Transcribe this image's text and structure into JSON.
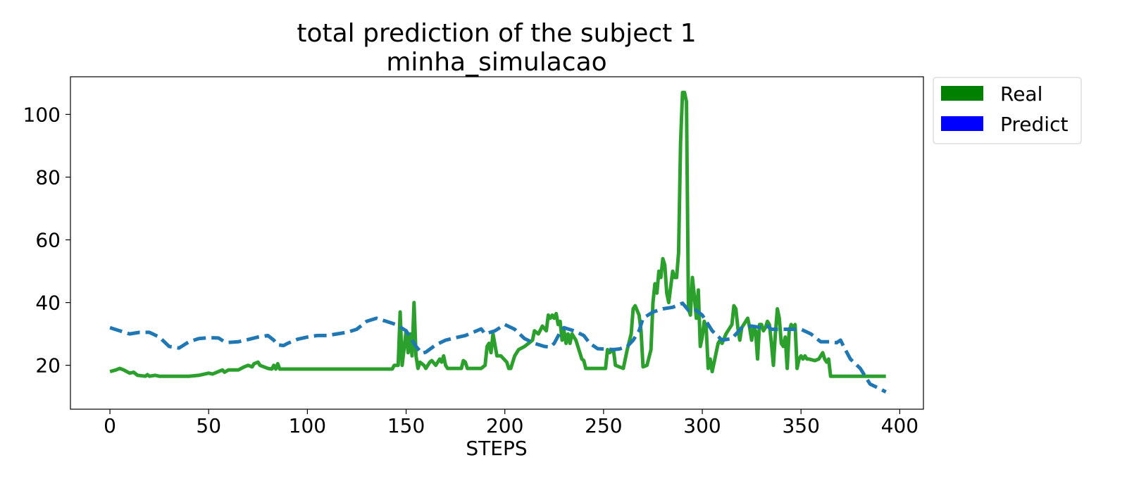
{
  "chart_data": {
    "type": "line",
    "title": "total prediction of the subject 1",
    "subtitle": "minha_simulacao",
    "xlabel": "STEPS",
    "ylabel": "",
    "xlim": [
      -20,
      412
    ],
    "ylim": [
      6,
      112
    ],
    "xticks": [
      0,
      50,
      100,
      150,
      200,
      250,
      300,
      350,
      400
    ],
    "yticks": [
      20,
      40,
      60,
      80,
      100
    ],
    "grid": false,
    "legend": {
      "placement": "outside-top-right",
      "entries": [
        {
          "label": "Real",
          "color": "#008000"
        },
        {
          "label": "Predict",
          "color": "#0000ff"
        }
      ]
    },
    "series": [
      {
        "name": "Real",
        "color": "#2ca02c",
        "style": "solid",
        "points": [
          [
            0,
            18
          ],
          [
            3,
            18.5
          ],
          [
            5,
            19
          ],
          [
            7,
            18.5
          ],
          [
            10,
            17.5
          ],
          [
            12,
            17.8
          ],
          [
            14,
            16.8
          ],
          [
            18,
            16.5
          ],
          [
            19,
            17
          ],
          [
            20,
            16.5
          ],
          [
            23,
            16.8
          ],
          [
            25,
            16.5
          ],
          [
            40,
            16.5
          ],
          [
            45,
            16.8
          ],
          [
            50,
            17.5
          ],
          [
            52,
            17.2
          ],
          [
            55,
            18
          ],
          [
            57,
            18.5
          ],
          [
            58,
            17.8
          ],
          [
            60,
            18.5
          ],
          [
            65,
            18.5
          ],
          [
            68,
            19.5
          ],
          [
            70,
            20
          ],
          [
            72,
            19.5
          ],
          [
            73,
            20.5
          ],
          [
            75,
            21
          ],
          [
            76,
            20
          ],
          [
            78,
            19.5
          ],
          [
            80,
            19
          ],
          [
            82,
            18.8
          ],
          [
            83,
            20
          ],
          [
            84,
            18.8
          ],
          [
            85,
            20.5
          ],
          [
            86,
            18.8
          ],
          [
            100,
            18.8
          ],
          [
            120,
            18.8
          ],
          [
            140,
            18.8
          ],
          [
            143,
            18.8
          ],
          [
            144,
            20
          ],
          [
            146,
            20
          ],
          [
            147,
            37
          ],
          [
            148,
            20
          ],
          [
            150,
            31
          ],
          [
            151,
            24
          ],
          [
            152,
            30
          ],
          [
            153,
            23
          ],
          [
            154,
            40
          ],
          [
            155,
            23
          ],
          [
            156,
            19
          ],
          [
            157,
            21
          ],
          [
            159,
            20
          ],
          [
            160,
            19
          ],
          [
            162,
            21
          ],
          [
            163,
            21.5
          ],
          [
            165,
            20
          ],
          [
            167,
            22
          ],
          [
            168,
            21
          ],
          [
            169,
            23
          ],
          [
            170,
            20
          ],
          [
            171,
            19
          ],
          [
            178,
            19
          ],
          [
            179,
            21.5
          ],
          [
            180,
            21
          ],
          [
            181,
            19
          ],
          [
            188,
            19
          ],
          [
            190,
            20
          ],
          [
            191,
            26
          ],
          [
            192,
            27
          ],
          [
            193,
            24
          ],
          [
            194,
            30
          ],
          [
            196,
            23
          ],
          [
            198,
            23
          ],
          [
            201,
            21
          ],
          [
            202,
            19
          ],
          [
            203,
            19
          ],
          [
            205,
            23
          ],
          [
            207,
            25
          ],
          [
            210,
            26
          ],
          [
            212,
            27
          ],
          [
            214,
            28
          ],
          [
            215,
            31
          ],
          [
            217,
            30
          ],
          [
            219,
            32.5
          ],
          [
            221,
            31
          ],
          [
            222,
            36
          ],
          [
            223,
            35
          ],
          [
            224,
            36
          ],
          [
            225,
            35
          ],
          [
            226,
            36.5
          ],
          [
            227,
            33
          ],
          [
            228,
            34
          ],
          [
            229,
            28
          ],
          [
            230,
            31
          ],
          [
            231,
            27
          ],
          [
            232,
            30
          ],
          [
            233,
            27
          ],
          [
            234,
            30
          ],
          [
            236,
            28
          ],
          [
            238,
            24
          ],
          [
            239,
            22
          ],
          [
            240,
            21.5
          ],
          [
            241,
            19
          ],
          [
            250,
            19
          ],
          [
            251,
            19
          ],
          [
            252,
            25
          ],
          [
            253,
            24
          ],
          [
            255,
            25
          ],
          [
            256,
            20
          ],
          [
            260,
            19
          ],
          [
            262,
            25
          ],
          [
            264,
            30
          ],
          [
            265,
            38
          ],
          [
            266,
            39
          ],
          [
            268,
            36
          ],
          [
            269,
            31
          ],
          [
            270,
            19.5
          ],
          [
            272,
            20
          ],
          [
            274,
            25
          ],
          [
            275,
            40
          ],
          [
            276,
            46
          ],
          [
            277,
            43
          ],
          [
            278,
            50
          ],
          [
            279,
            48
          ],
          [
            280,
            54
          ],
          [
            281,
            52
          ],
          [
            282,
            43
          ],
          [
            283,
            40
          ],
          [
            284,
            45
          ],
          [
            285,
            50
          ],
          [
            286,
            48
          ],
          [
            287,
            48
          ],
          [
            288,
            56
          ],
          [
            289,
            91
          ],
          [
            290,
            107
          ],
          [
            291,
            107
          ],
          [
            292,
            104
          ],
          [
            293,
            38
          ],
          [
            294,
            36
          ],
          [
            295,
            48
          ],
          [
            296,
            42
          ],
          [
            297,
            35
          ],
          [
            298,
            44
          ],
          [
            299,
            26
          ],
          [
            300,
            29
          ],
          [
            301,
            34
          ],
          [
            302,
            32
          ],
          [
            303,
            19
          ],
          [
            304,
            22
          ],
          [
            305,
            18
          ],
          [
            306,
            21
          ],
          [
            308,
            27
          ],
          [
            309,
            28
          ],
          [
            310,
            27
          ],
          [
            312,
            30
          ],
          [
            315,
            33
          ],
          [
            316,
            39
          ],
          [
            317,
            38
          ],
          [
            318,
            32
          ],
          [
            319,
            28
          ],
          [
            320,
            32
          ],
          [
            321,
            33
          ],
          [
            322,
            34
          ],
          [
            323,
            35
          ],
          [
            324,
            32
          ],
          [
            325,
            28
          ],
          [
            326,
            32
          ],
          [
            327,
            31
          ],
          [
            328,
            22
          ],
          [
            329,
            33
          ],
          [
            330,
            33
          ],
          [
            331,
            31
          ],
          [
            332,
            32
          ],
          [
            333,
            34
          ],
          [
            334,
            33
          ],
          [
            335,
            27
          ],
          [
            336,
            20
          ],
          [
            337,
            30
          ],
          [
            338,
            38
          ],
          [
            339,
            35
          ],
          [
            340,
            27
          ],
          [
            341,
            26
          ],
          [
            342,
            29
          ],
          [
            343,
            19
          ],
          [
            344,
            31
          ],
          [
            345,
            33
          ],
          [
            346,
            32
          ],
          [
            347,
            33
          ],
          [
            348,
            19
          ],
          [
            349,
            22
          ],
          [
            350,
            23
          ],
          [
            351,
            22
          ],
          [
            352,
            23
          ],
          [
            353,
            22
          ],
          [
            354,
            22
          ],
          [
            357,
            21.5
          ],
          [
            359,
            22
          ],
          [
            361,
            24
          ],
          [
            362,
            22
          ],
          [
            363,
            21
          ],
          [
            364,
            22
          ],
          [
            365,
            16.5
          ],
          [
            375,
            16.5
          ],
          [
            393,
            16.5
          ]
        ]
      },
      {
        "name": "Predict",
        "color": "#1f77b4",
        "style": "dashed",
        "points": [
          [
            0,
            32
          ],
          [
            5,
            31
          ],
          [
            10,
            30
          ],
          [
            15,
            30.5
          ],
          [
            20,
            30.5
          ],
          [
            25,
            29
          ],
          [
            30,
            26
          ],
          [
            35,
            25.5
          ],
          [
            40,
            27.5
          ],
          [
            45,
            28.5
          ],
          [
            50,
            28.8
          ],
          [
            55,
            28.7
          ],
          [
            58,
            27.5
          ],
          [
            60,
            27.3
          ],
          [
            65,
            27.5
          ],
          [
            70,
            28.2
          ],
          [
            75,
            29
          ],
          [
            80,
            29.5
          ],
          [
            83,
            28
          ],
          [
            85,
            26.5
          ],
          [
            88,
            26.3
          ],
          [
            90,
            27
          ],
          [
            95,
            28.3
          ],
          [
            100,
            29
          ],
          [
            105,
            29.5
          ],
          [
            110,
            29.5
          ],
          [
            115,
            30
          ],
          [
            120,
            30.5
          ],
          [
            125,
            31.5
          ],
          [
            130,
            34
          ],
          [
            135,
            35
          ],
          [
            140,
            34
          ],
          [
            145,
            33
          ],
          [
            150,
            31
          ],
          [
            155,
            26
          ],
          [
            158,
            23.8
          ],
          [
            160,
            24.2
          ],
          [
            165,
            26.5
          ],
          [
            170,
            28
          ],
          [
            175,
            28.8
          ],
          [
            180,
            29.5
          ],
          [
            185,
            30.8
          ],
          [
            188,
            31.6
          ],
          [
            190,
            30
          ],
          [
            195,
            31
          ],
          [
            200,
            33
          ],
          [
            205,
            31.5
          ],
          [
            210,
            28.5
          ],
          [
            215,
            27
          ],
          [
            220,
            26
          ],
          [
            223,
            25.8
          ],
          [
            225,
            27
          ],
          [
            228,
            30.5
          ],
          [
            230,
            32
          ],
          [
            235,
            31
          ],
          [
            240,
            29.5
          ],
          [
            243,
            27
          ],
          [
            247,
            25.3
          ],
          [
            250,
            25.2
          ],
          [
            255,
            25
          ],
          [
            258,
            25.2
          ],
          [
            262,
            26
          ],
          [
            265,
            28
          ],
          [
            268,
            31
          ],
          [
            270,
            35
          ],
          [
            275,
            37
          ],
          [
            280,
            38
          ],
          [
            285,
            38.5
          ],
          [
            290,
            39.8
          ],
          [
            293,
            37.5
          ],
          [
            296,
            38
          ],
          [
            300,
            36
          ],
          [
            305,
            31
          ],
          [
            310,
            28
          ],
          [
            315,
            28.5
          ],
          [
            320,
            32
          ],
          [
            325,
            32.5
          ],
          [
            330,
            32
          ],
          [
            333,
            32.5
          ],
          [
            335,
            31.5
          ],
          [
            340,
            31.5
          ],
          [
            345,
            31.5
          ],
          [
            350,
            31.5
          ],
          [
            355,
            30
          ],
          [
            360,
            27.5
          ],
          [
            365,
            27.5
          ],
          [
            368,
            27.2
          ],
          [
            370,
            28
          ],
          [
            372,
            25.5
          ],
          [
            375,
            22
          ],
          [
            380,
            19
          ],
          [
            385,
            14
          ],
          [
            390,
            12.5
          ],
          [
            393,
            11.5
          ]
        ]
      }
    ]
  }
}
